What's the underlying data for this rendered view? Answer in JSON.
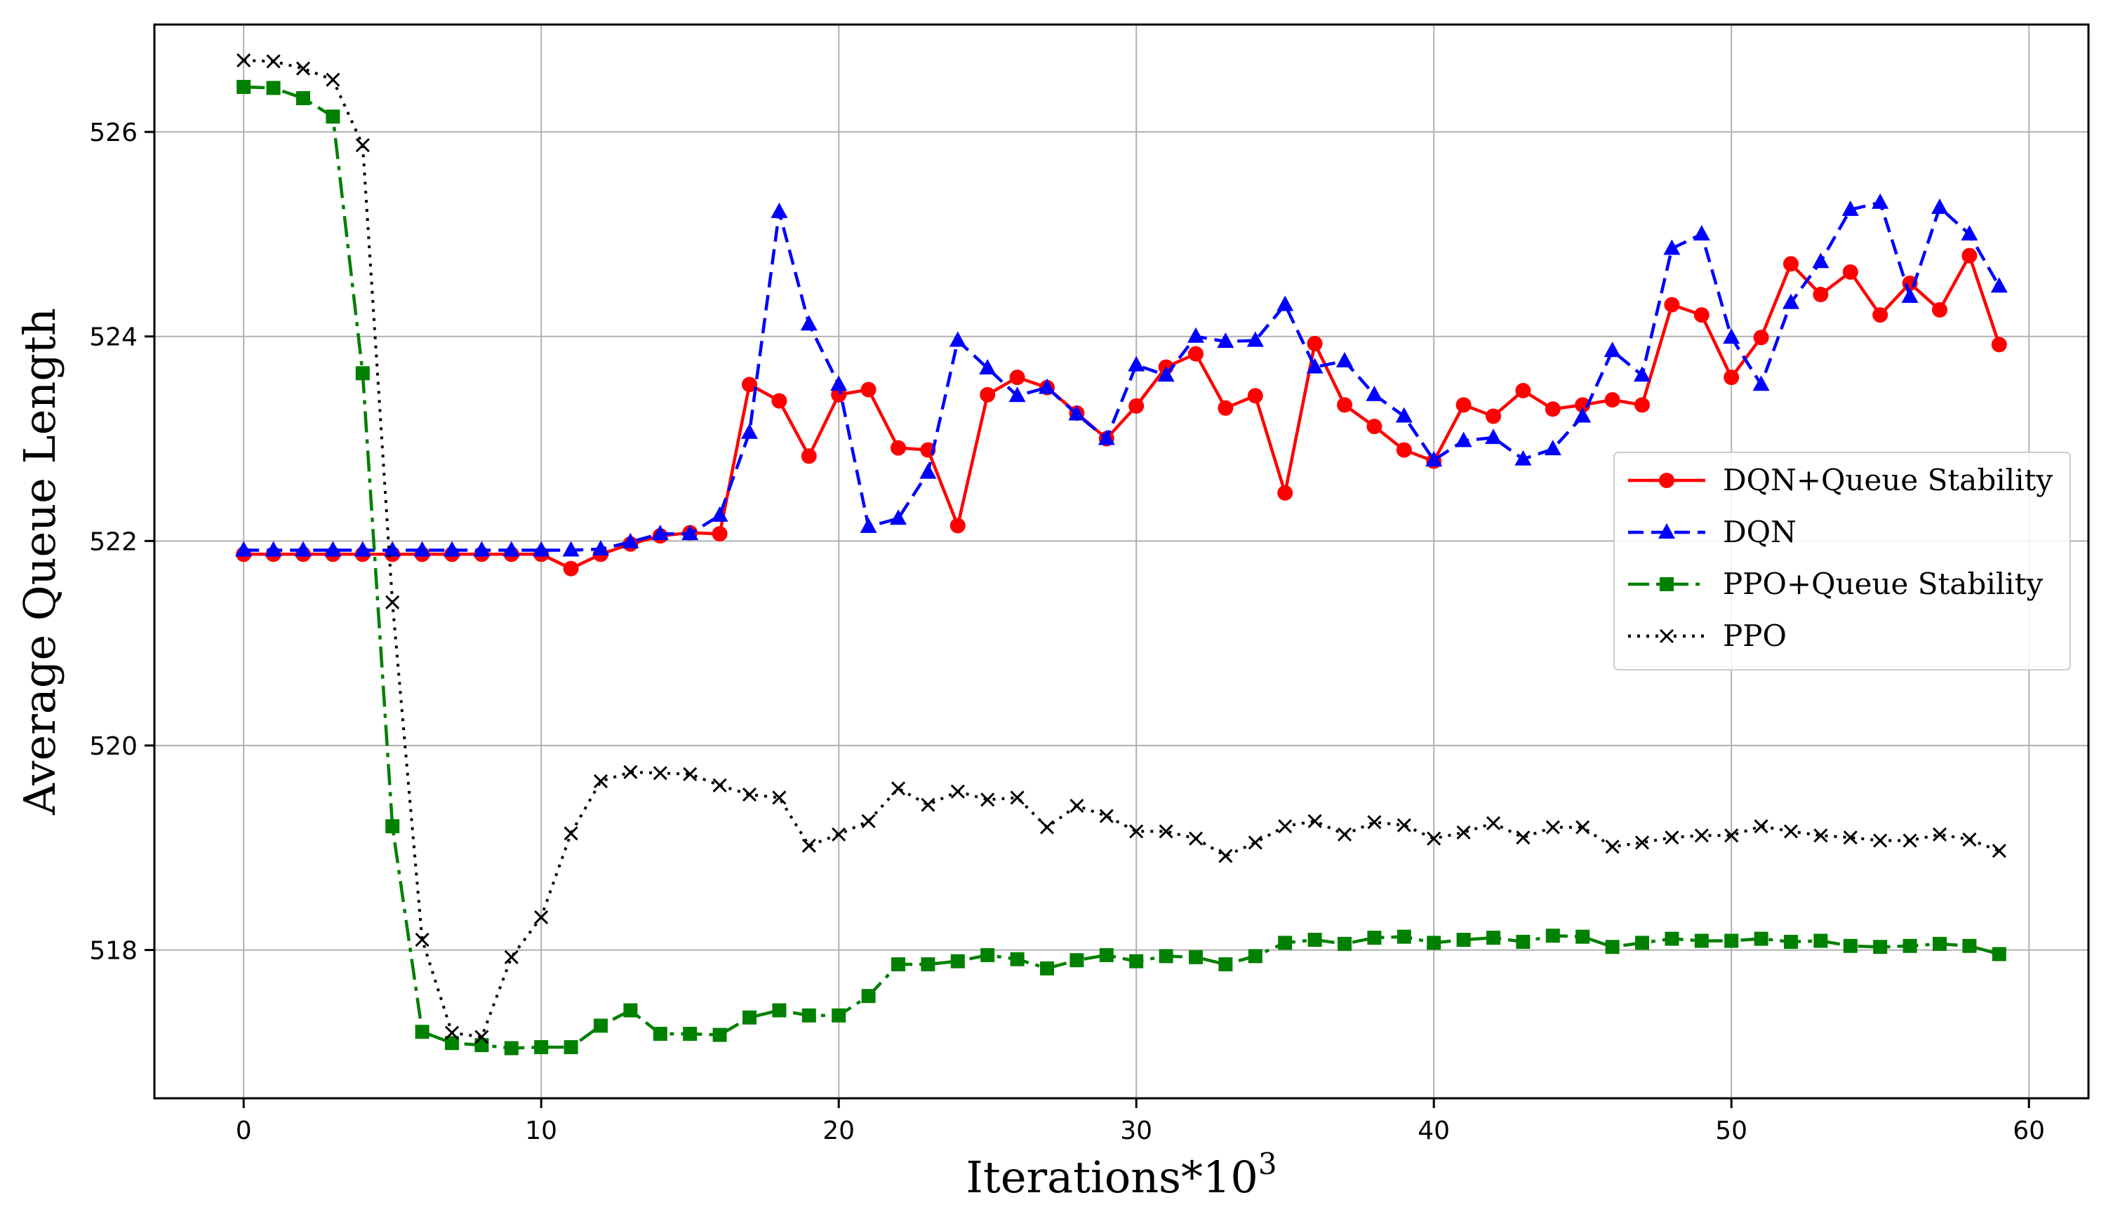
{
  "chart_data": {
    "type": "line",
    "title": "",
    "xlabel": "Iterations*10",
    "xlabel_superscript": "3",
    "ylabel": "Average Queue Length",
    "xlim": [
      -3,
      62
    ],
    "ylim": [
      516.55,
      527.05
    ],
    "x_ticks": [
      0,
      10,
      20,
      30,
      40,
      50,
      60
    ],
    "y_ticks": [
      518,
      520,
      522,
      524,
      526
    ],
    "grid": true,
    "legend": "center-right",
    "x": [
      0,
      1,
      2,
      3,
      4,
      5,
      6,
      7,
      8,
      9,
      10,
      11,
      12,
      13,
      14,
      15,
      16,
      17,
      18,
      19,
      20,
      21,
      22,
      23,
      24,
      25,
      26,
      27,
      28,
      29,
      30,
      31,
      32,
      33,
      34,
      35,
      36,
      37,
      38,
      39,
      40,
      41,
      42,
      43,
      44,
      45,
      46,
      47,
      48,
      49,
      50,
      51,
      52,
      53,
      54,
      55,
      56,
      57,
      58,
      59
    ],
    "series": [
      {
        "name": "DQN+Queue Stability",
        "color": "#ff0000",
        "line": "solid",
        "marker": "circle",
        "values": [
          521.87,
          521.87,
          521.87,
          521.87,
          521.87,
          521.87,
          521.87,
          521.87,
          521.87,
          521.87,
          521.87,
          521.73,
          521.87,
          521.97,
          522.05,
          522.08,
          522.07,
          523.53,
          523.37,
          522.83,
          523.43,
          523.48,
          522.91,
          522.89,
          522.15,
          523.43,
          523.6,
          523.5,
          523.25,
          523.0,
          523.32,
          523.7,
          523.83,
          523.3,
          523.42,
          522.47,
          523.93,
          523.33,
          523.12,
          522.89,
          522.78,
          523.33,
          523.22,
          523.47,
          523.29,
          523.33,
          523.38,
          523.33,
          524.31,
          524.21,
          523.6,
          523.99,
          524.71,
          524.41,
          524.63,
          524.21,
          524.52,
          524.26,
          524.79,
          523.92
        ]
      },
      {
        "name": "DQN",
        "color": "#0000ff",
        "line": "dashed",
        "marker": "triangle",
        "values": [
          521.91,
          521.91,
          521.91,
          521.91,
          521.91,
          521.91,
          521.91,
          521.91,
          521.91,
          521.91,
          521.91,
          521.91,
          521.92,
          521.99,
          522.07,
          522.07,
          522.25,
          523.06,
          525.22,
          524.12,
          523.53,
          522.14,
          522.22,
          522.67,
          523.96,
          523.69,
          523.42,
          523.5,
          523.24,
          523.0,
          523.72,
          523.62,
          524.0,
          523.95,
          523.96,
          524.31,
          523.7,
          523.76,
          523.43,
          523.22,
          522.79,
          522.98,
          523.01,
          522.8,
          522.9,
          523.22,
          523.86,
          523.62,
          524.86,
          525.0,
          523.99,
          523.53,
          524.33,
          524.73,
          525.24,
          525.31,
          524.39,
          525.26,
          525.0,
          524.49
        ]
      },
      {
        "name": "PPO+Queue Stability",
        "color": "#008000",
        "line": "dashdot",
        "marker": "square",
        "values": [
          526.44,
          526.43,
          526.33,
          526.15,
          523.64,
          519.21,
          517.2,
          517.09,
          517.07,
          517.04,
          517.05,
          517.05,
          517.26,
          517.41,
          517.18,
          517.18,
          517.17,
          517.34,
          517.41,
          517.36,
          517.36,
          517.55,
          517.86,
          517.86,
          517.89,
          517.95,
          517.91,
          517.82,
          517.9,
          517.95,
          517.89,
          517.94,
          517.93,
          517.86,
          517.94,
          518.07,
          518.1,
          518.06,
          518.12,
          518.13,
          518.07,
          518.1,
          518.12,
          518.08,
          518.14,
          518.13,
          518.03,
          518.07,
          518.11,
          518.09,
          518.09,
          518.11,
          518.08,
          518.09,
          518.04,
          518.03,
          518.04,
          518.06,
          518.04,
          517.96
        ]
      },
      {
        "name": "PPO",
        "color": "#000000",
        "line": "dotted",
        "marker": "x",
        "values": [
          526.7,
          526.69,
          526.62,
          526.51,
          525.87,
          521.4,
          518.1,
          517.19,
          517.15,
          517.93,
          518.32,
          519.14,
          519.65,
          519.74,
          519.73,
          519.72,
          519.61,
          519.52,
          519.49,
          519.02,
          519.13,
          519.26,
          519.58,
          519.42,
          519.55,
          519.47,
          519.49,
          519.2,
          519.41,
          519.31,
          519.16,
          519.16,
          519.09,
          518.92,
          519.05,
          519.21,
          519.26,
          519.13,
          519.25,
          519.22,
          519.09,
          519.15,
          519.24,
          519.1,
          519.2,
          519.2,
          519.01,
          519.05,
          519.1,
          519.12,
          519.12,
          519.21,
          519.16,
          519.12,
          519.1,
          519.07,
          519.07,
          519.13,
          519.08,
          518.97
        ]
      }
    ]
  }
}
